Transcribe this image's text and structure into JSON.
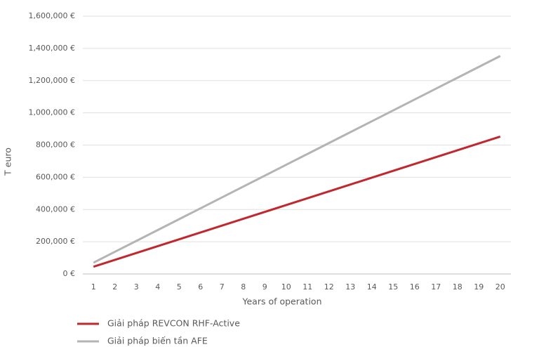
{
  "chart_data": {
    "type": "line",
    "y_label": "T euro",
    "x_label": "Years of operation",
    "x": [
      1,
      2,
      3,
      4,
      5,
      6,
      7,
      8,
      9,
      10,
      11,
      12,
      13,
      14,
      15,
      16,
      17,
      18,
      19,
      20
    ],
    "xlim": [
      0.5,
      20.5
    ],
    "series": [
      {
        "name": "Giải pháp REVCON RHF-Active",
        "color": "#c1272d",
        "values": [
          45000,
          87500,
          130000,
          172500,
          215000,
          257500,
          300000,
          342500,
          385000,
          427500,
          470000,
          512500,
          555000,
          597500,
          640000,
          682500,
          725000,
          767500,
          810000,
          852500
        ]
      },
      {
        "name": "Giải pháp biến tần AFE",
        "color": "#b4b4b4",
        "values": [
          70000,
          137500,
          205000,
          272500,
          340000,
          407500,
          475000,
          542500,
          610000,
          677500,
          745000,
          812500,
          880000,
          947500,
          1015000,
          1082500,
          1150000,
          1217500,
          1285000,
          1352500
        ]
      }
    ],
    "ylim": [
      0,
      1600000
    ],
    "yticks": [
      {
        "value": 0,
        "label": "0 €"
      },
      {
        "value": 200000,
        "label": "200,000 €"
      },
      {
        "value": 400000,
        "label": "400,000 €"
      },
      {
        "value": 600000,
        "label": "600,000 €"
      },
      {
        "value": 800000,
        "label": "800,000 €"
      },
      {
        "value": 1000000,
        "label": "1,000,000 €"
      },
      {
        "value": 1200000,
        "label": "1,200,000 €"
      },
      {
        "value": 1400000,
        "label": "1,400,000 €"
      },
      {
        "value": 1600000,
        "label": "1,600,000 €"
      }
    ],
    "grid": true,
    "legend": "bottom-left"
  }
}
